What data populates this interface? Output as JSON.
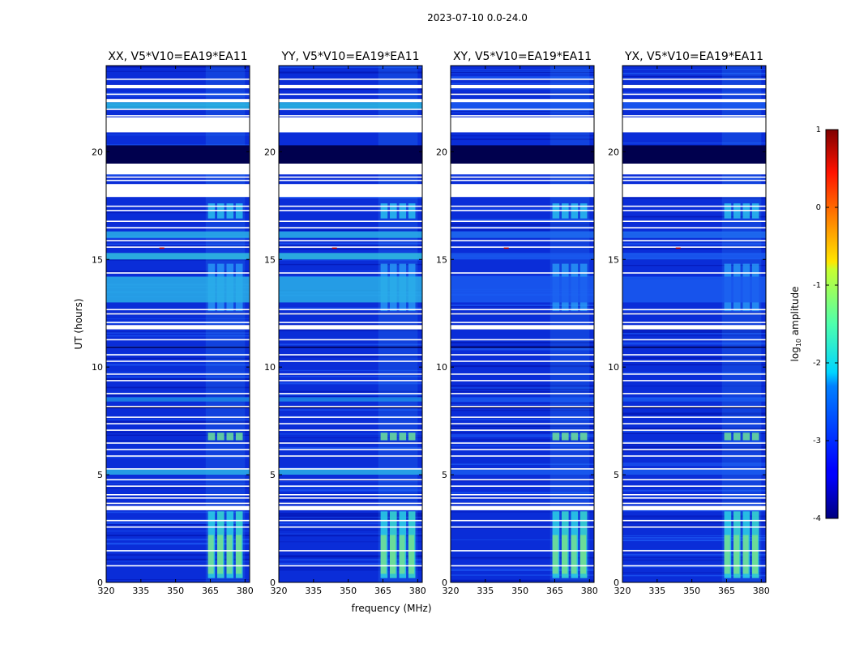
{
  "chart_data": {
    "type": "heatmap",
    "title": "2023-07-10 0.0-24.0",
    "xlabel": "frequency (MHz)",
    "ylabel": "UT (hours)",
    "xlim": [
      320,
      382
    ],
    "ylim": [
      0,
      24
    ],
    "xticks": [
      320,
      335,
      350,
      365,
      380
    ],
    "yticks": [
      0,
      5,
      10,
      15,
      20
    ],
    "colormap": "jet",
    "colorbar": {
      "label_main": "log",
      "label_sub": "10",
      "label_end": " amplitude",
      "range": [
        -4,
        1
      ],
      "ticks": [
        1,
        0,
        -1,
        -2,
        -3,
        -4
      ]
    },
    "panels": [
      {
        "name": "XX, V5*V10=EA19*EA11"
      },
      {
        "name": "YY, V5*V10=EA19*EA11"
      },
      {
        "name": "XY, V5*V10=EA19*EA11"
      },
      {
        "name": "YX, V5*V10=EA19*EA11"
      }
    ],
    "rfi_band_mhz": [
      363,
      380
    ],
    "blank_hours": [
      [
        3.35,
        3.55
      ],
      [
        11.75,
        11.95
      ],
      [
        17.9,
        18.5
      ],
      [
        18.95,
        19.45
      ],
      [
        20.9,
        21.6
      ],
      [
        22.3,
        22.45
      ],
      [
        22.95,
        23.05
      ]
    ],
    "dark_hours": [
      [
        19.45,
        20.3
      ],
      [
        3.65,
        3.7
      ],
      [
        8.1,
        8.15
      ],
      [
        10.9,
        10.95
      ],
      [
        12.45,
        12.5
      ]
    ]
  }
}
